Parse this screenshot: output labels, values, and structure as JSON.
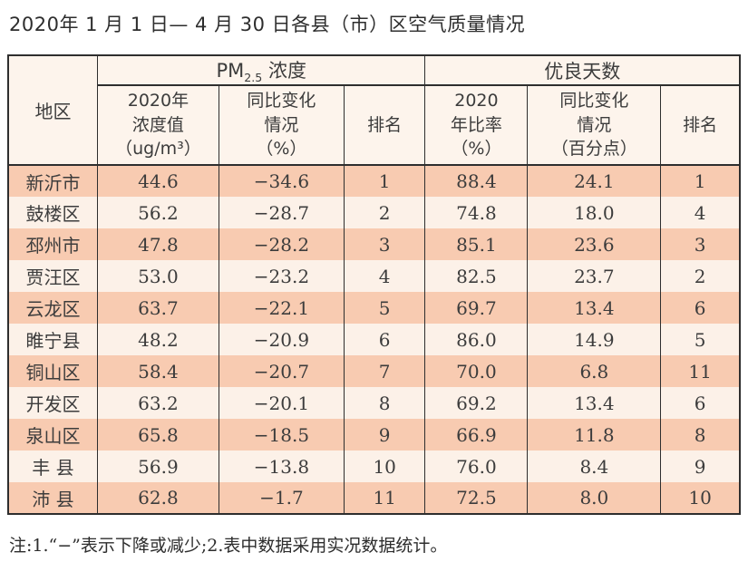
{
  "title": "2020年 1 月 1 日— 4 月 30 日各县（市）区空气质量情况",
  "headers": {
    "region": "地区",
    "pm25": {
      "prefix": "PM",
      "subscript": "2.5",
      "suffix": " 浓度"
    },
    "good_days": "优良天数",
    "sub_headers": [
      "2020年\n浓度值\n（ug/m³）",
      "同比变化\n情况\n（%）",
      "排名",
      "2020\n年比率\n（%）",
      "同比变化\n情况\n（百分点）",
      "排名"
    ]
  },
  "note": "注:1.“−”表示下降或减少;2.表中数据采用实况数据统计。",
  "colors": {
    "row_odd": "#f8cbb1",
    "row_even": "#fcf1e8",
    "header_bg": "#fdf4ec",
    "border": "#2e2e2e",
    "text": "#3c3c3c"
  },
  "chart_data": {
    "type": "table",
    "title": "2020年 1 月 1 日— 4 月 30 日各县（市）区空气质量情况",
    "column_groups": [
      "地区",
      "PM2.5浓度",
      "优良天数"
    ],
    "columns": [
      "地区",
      "2020年浓度值（ug/m³）",
      "PM2.5同比变化情况（%）",
      "PM2.5排名",
      "优良天数2020年比率（%）",
      "优良天数同比变化情况（百分点）",
      "优良天数排名"
    ],
    "rows": [
      [
        "新沂市",
        "44.6",
        "−34.6",
        "1",
        "88.4",
        "24.1",
        "1"
      ],
      [
        "鼓楼区",
        "56.2",
        "−28.7",
        "2",
        "74.8",
        "18.0",
        "4"
      ],
      [
        "邳州市",
        "47.8",
        "−28.2",
        "3",
        "85.1",
        "23.6",
        "3"
      ],
      [
        "贾汪区",
        "53.0",
        "−23.2",
        "4",
        "82.5",
        "23.7",
        "2"
      ],
      [
        "云龙区",
        "63.7",
        "−22.1",
        "5",
        "69.7",
        "13.4",
        "6"
      ],
      [
        "睢宁县",
        "48.2",
        "−20.9",
        "6",
        "86.0",
        "14.9",
        "5"
      ],
      [
        "铜山区",
        "58.4",
        "−20.7",
        "7",
        "70.0",
        "6.8",
        "11"
      ],
      [
        "开发区",
        "63.2",
        "−20.1",
        "8",
        "69.2",
        "13.4",
        "6"
      ],
      [
        "泉山区",
        "65.8",
        "−18.5",
        "9",
        "66.9",
        "11.8",
        "8"
      ],
      [
        "丰 县",
        "56.9",
        "−13.8",
        "10",
        "76.0",
        "8.4",
        "9"
      ],
      [
        "沛 县",
        "62.8",
        "−1.7",
        "11",
        "72.5",
        "8.0",
        "10"
      ]
    ]
  }
}
